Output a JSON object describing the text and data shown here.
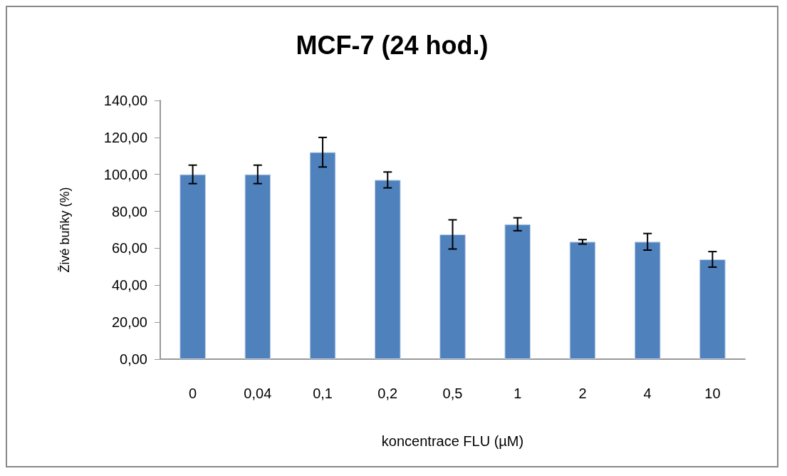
{
  "chart_data": {
    "type": "bar",
    "title": "MCF-7 (24 hod.)",
    "xlabel": "koncentrace FLU (µM)",
    "ylabel": "Živé buňky (%)",
    "categories": [
      "0",
      "0,04",
      "0,1",
      "0,2",
      "0,5",
      "1",
      "2",
      "4",
      "10"
    ],
    "values": [
      100,
      100,
      112,
      97,
      67.5,
      73,
      63.5,
      63.5,
      54
    ],
    "errors": [
      5,
      5,
      8,
      4.3,
      7.9,
      3.5,
      1.2,
      4.5,
      4.2
    ],
    "color": "#4f81bd",
    "ylim": [
      0,
      140
    ],
    "yticks": [
      {
        "value": 0,
        "label": "0,00"
      },
      {
        "value": 20,
        "label": "20,00"
      },
      {
        "value": 40,
        "label": "40,00"
      },
      {
        "value": 60,
        "label": "60,00"
      },
      {
        "value": 80,
        "label": "80,00"
      },
      {
        "value": 100,
        "label": "100,00"
      },
      {
        "value": 120,
        "label": "120,00"
      },
      {
        "value": 140,
        "label": "140,00"
      }
    ],
    "grid": false
  }
}
